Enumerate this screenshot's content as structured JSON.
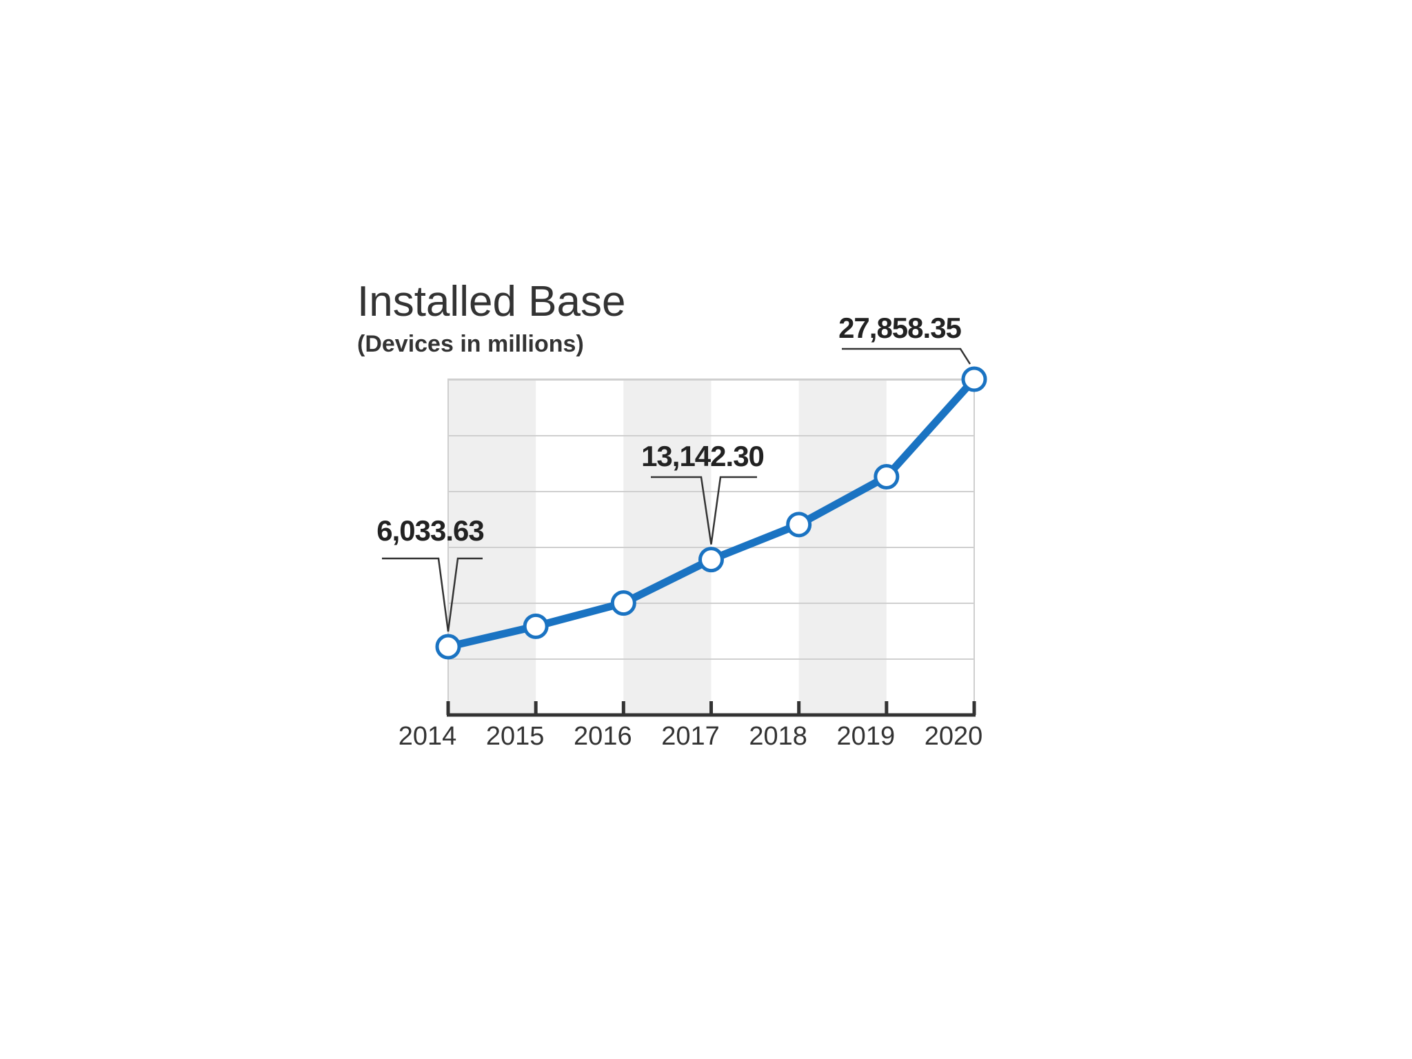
{
  "chart_data": {
    "type": "line",
    "title": "Installed Base",
    "subtitle": "(Devices in millions)",
    "categories": [
      "2014",
      "2015",
      "2016",
      "2017",
      "2018",
      "2019",
      "2020"
    ],
    "series": [
      {
        "values": [
          6033.63,
          7700,
          9600,
          13142.3,
          16000,
          19900,
          27858.35
        ]
      }
    ],
    "ylim": [
      0,
      27858.35
    ],
    "grid": true,
    "annotations": [
      {
        "category": "2014",
        "label": "6,033.63"
      },
      {
        "category": "2017",
        "label": "13,142.30"
      },
      {
        "category": "2020",
        "label": "27,858.35"
      }
    ],
    "colors": {
      "line": "#1a73c2",
      "marker_fill": "#ffffff",
      "band": "#efefef",
      "grid": "#cfcfcf",
      "axis": "#333333",
      "text": "#333333"
    }
  }
}
